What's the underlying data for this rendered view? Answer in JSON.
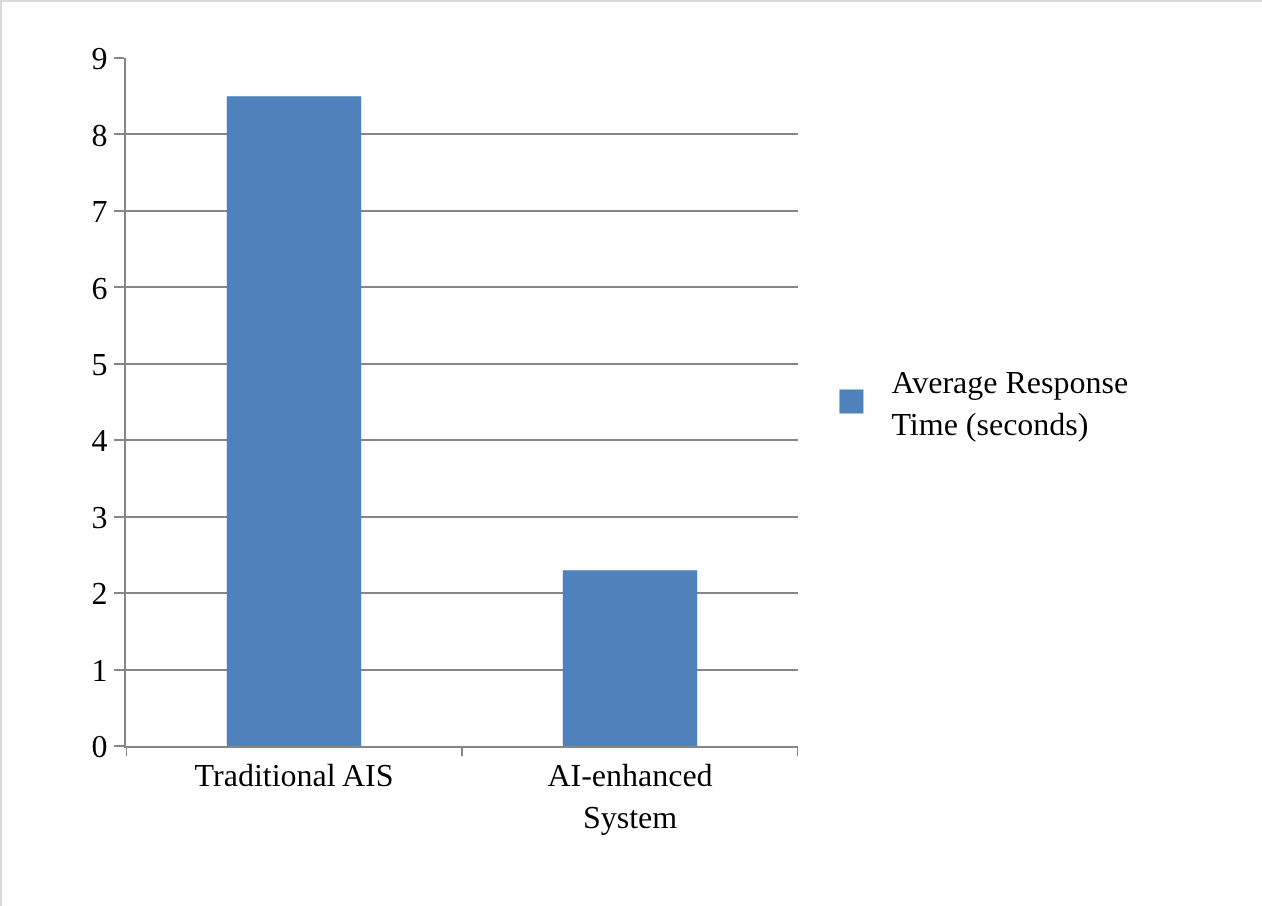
{
  "chart_data": {
    "type": "bar",
    "categories": [
      "Traditional AIS",
      "AI-enhanced System"
    ],
    "series": [
      {
        "name": "Average Response Time (seconds)",
        "color": "#4f81bd",
        "values": [
          8.5,
          2.3
        ]
      }
    ],
    "ylim": [
      0,
      9
    ],
    "yticks": [
      0,
      1,
      2,
      3,
      4,
      5,
      6,
      7,
      8,
      9
    ],
    "grid": "y",
    "legend": "right"
  }
}
